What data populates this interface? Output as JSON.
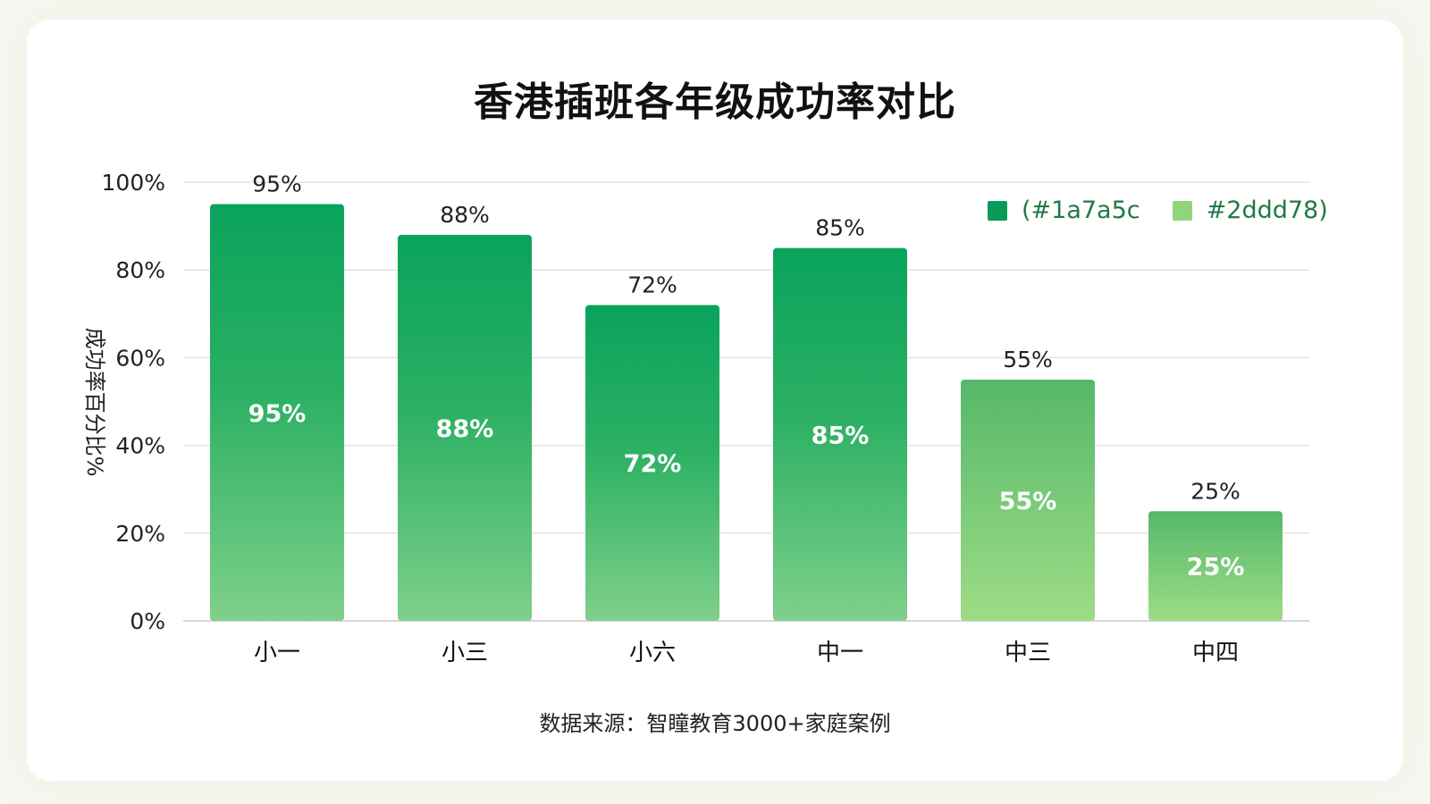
{
  "colors": {
    "dark": "#1a7a5c",
    "bar_top": "#0aa35c",
    "bar_bottom": "#7fd08a",
    "bar_light_top": "#56b86a",
    "bar_light_bottom": "#9edc86",
    "legend_light": "#8fd67a",
    "grid": "#e3e3e3"
  },
  "legend": [
    {
      "label": "(#1a7a5c",
      "color": "#0a9a58"
    },
    {
      "label": "#2ddd78)",
      "color": "#8fd67a"
    }
  ],
  "footer": "数据来源：智瞳教育3000+家庭案例",
  "chart_data": {
    "type": "bar",
    "title": "香港插班各年级成功率对比",
    "ylabel": "成功率百分比%",
    "xlabel": "",
    "categories": [
      "小一",
      "小三",
      "小六",
      "中一",
      "中三",
      "中四"
    ],
    "values": [
      95,
      88,
      72,
      85,
      55,
      25
    ],
    "value_labels": [
      "95%",
      "88%",
      "72%",
      "85%",
      "55%",
      "25%"
    ],
    "ylim": [
      0,
      100
    ],
    "yticks": [
      "0%",
      "20%",
      "40%",
      "60%",
      "80%",
      "100%"
    ],
    "grid": true,
    "legend_position": "top-right"
  }
}
